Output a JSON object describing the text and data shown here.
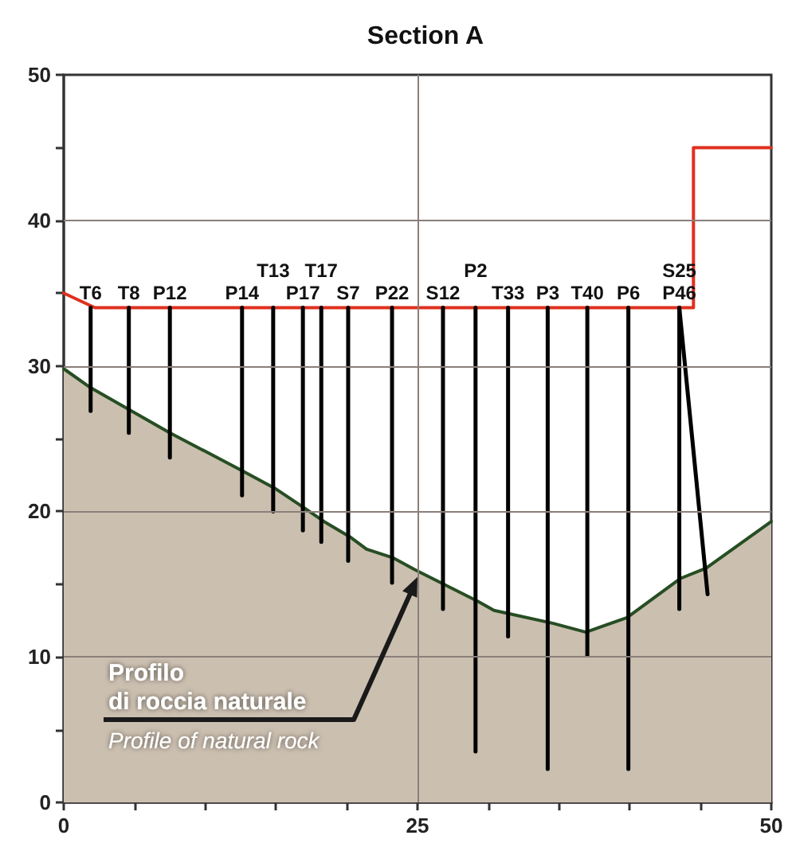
{
  "chart_data": {
    "type": "line",
    "title": "Section A",
    "xlim": [
      0,
      50
    ],
    "xticks": [
      0,
      {
        "value": 5,
        "label": null
      },
      {
        "value": 10,
        "label": null
      },
      {
        "value": 15,
        "label": null
      },
      {
        "value": 20,
        "label": null
      },
      25,
      {
        "value": 30,
        "label": null
      },
      {
        "value": 35,
        "label": null
      },
      {
        "value": 40,
        "label": null
      },
      {
        "value": 45,
        "label": null
      },
      50
    ],
    "ylim": [
      0,
      50
    ],
    "yticks": [
      0,
      {
        "value": 5,
        "label": null
      },
      10,
      {
        "value": 15,
        "label": null
      },
      20,
      {
        "value": 25,
        "label": null
      },
      30,
      {
        "value": 35,
        "label": null
      },
      40,
      {
        "value": 45,
        "label": null
      },
      50
    ],
    "grid": true,
    "marker": "none",
    "annotations": [
      {
        "text": "Profilo\ndi roccia naturale",
        "x": 25,
        "y": 15.5
      },
      "Profile of natural rock"
    ],
    "series": [
      {
        "type": "area",
        "color": "#cbbfb0",
        "x": [
          0,
          1.9,
          7.5,
          12.6,
          14.9,
          16.9,
          18.4,
          20.3,
          21.4,
          23.3,
          24.8,
          29.3,
          30.4,
          34.6,
          36.9,
          39.8,
          43.6,
          45.4,
          50
        ],
        "values": [
          29.8,
          28.5,
          25.4,
          22.8,
          21.6,
          20.3,
          19.3,
          18.2,
          17.4,
          16.8,
          16.0,
          13.8,
          13.2,
          12.3,
          11.7,
          12.7,
          15.4,
          16.1,
          19.3
        ]
      },
      {
        "type": "line",
        "color": "#e0301e",
        "x": [
          0,
          2.2,
          44.5,
          44.5,
          50
        ],
        "values": [
          35,
          34,
          34,
          45,
          45
        ]
      },
      {
        "name": "T6",
        "color": "#000000",
        "x": [
          1.9,
          1.9
        ],
        "values": [
          34,
          26.9
        ]
      },
      {
        "name": "T8",
        "color": "#000000",
        "x": [
          4.6,
          4.6
        ],
        "values": [
          34,
          25.4
        ]
      },
      {
        "name": "P12",
        "color": "#000000",
        "x": [
          7.5,
          7.5
        ],
        "values": [
          34,
          23.7
        ]
      },
      {
        "name": "P14",
        "color": "#000000",
        "x": [
          12.6,
          12.6
        ],
        "values": [
          34,
          21.1
        ]
      },
      {
        "name": "T13",
        "color": "#000000",
        "x": [
          14.8,
          14.8
        ],
        "values": [
          34,
          20.0
        ]
      },
      {
        "name": "P17",
        "color": "#000000",
        "x": [
          16.9,
          16.9
        ],
        "values": [
          34,
          18.7
        ]
      },
      {
        "name": "T17",
        "color": "#000000",
        "x": [
          18.2,
          18.2
        ],
        "values": [
          34,
          17.9
        ]
      },
      {
        "name": "S7",
        "color": "#000000",
        "x": [
          20.1,
          20.1
        ],
        "values": [
          34,
          16.6
        ]
      },
      {
        "name": "P22",
        "color": "#000000",
        "x": [
          23.2,
          23.2
        ],
        "values": [
          34,
          15.1
        ]
      },
      {
        "name": "S12",
        "color": "#000000",
        "x": [
          26.8,
          26.8
        ],
        "values": [
          34,
          13.3
        ]
      },
      {
        "name": "P2",
        "color": "#000000",
        "x": [
          29.1,
          29.1
        ],
        "values": [
          34,
          3.5
        ]
      },
      {
        "name": "T33",
        "color": "#000000",
        "x": [
          31.4,
          31.4
        ],
        "values": [
          34,
          11.4
        ]
      },
      {
        "name": "P3",
        "color": "#000000",
        "x": [
          34.2,
          34.2
        ],
        "values": [
          34,
          2.3
        ]
      },
      {
        "name": "T40",
        "color": "#000000",
        "x": [
          37.0,
          37.0
        ],
        "values": [
          34,
          10.1
        ]
      },
      {
        "name": "P6",
        "color": "#000000",
        "x": [
          39.9,
          39.9
        ],
        "values": [
          34,
          2.3
        ]
      },
      {
        "name": "P46",
        "color": "#000000",
        "x": [
          43.5,
          43.5
        ],
        "values": [
          34,
          13.3
        ]
      },
      {
        "name": "S25",
        "color": "#000000",
        "x": [
          43.5,
          45.5
        ],
        "values": [
          34,
          14.3
        ]
      }
    ]
  }
}
